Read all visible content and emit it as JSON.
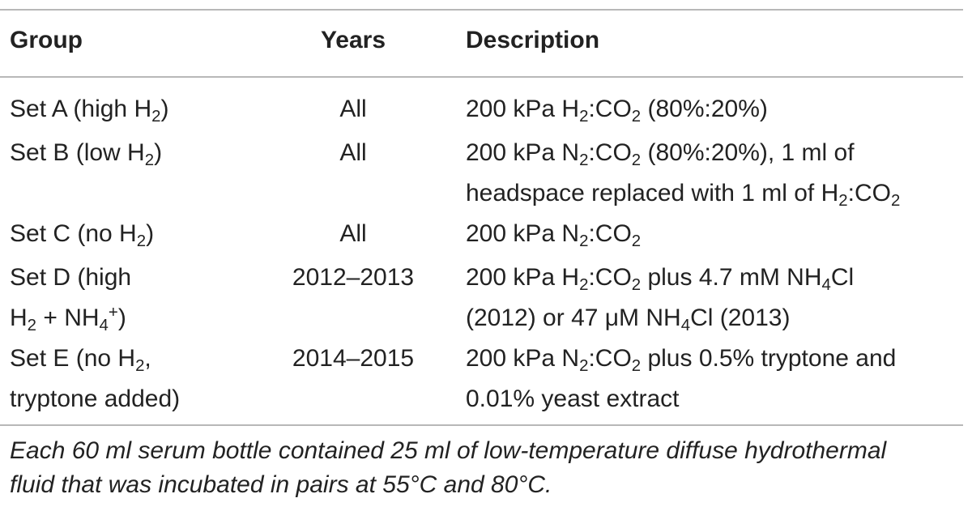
{
  "table": {
    "headers": {
      "group": "Group",
      "years": "Years",
      "description": "Description"
    },
    "rows": [
      {
        "group_lines": [
          "Set A (high H<sub>2</sub>)"
        ],
        "years": "All",
        "desc_lines": [
          "200 kPa H<sub>2</sub>:CO<sub>2</sub> (80%:20%)"
        ]
      },
      {
        "group_lines": [
          "Set B (low H<sub>2</sub>)"
        ],
        "years": "All",
        "desc_lines": [
          "200 kPa N<sub>2</sub>:CO<sub>2</sub> (80%:20%), 1 ml of",
          "headspace replaced with 1 ml of H<sub>2</sub>:CO<sub>2</sub>"
        ]
      },
      {
        "group_lines": [
          "Set C (no H<sub>2</sub>)"
        ],
        "years": "All",
        "desc_lines": [
          "200 kPa N<sub>2</sub>:CO<sub>2</sub>"
        ]
      },
      {
        "group_lines": [
          "Set D (high",
          "H<sub>2</sub> + NH<sub>4</sub><sup>+</sup>)"
        ],
        "years": "2012–2013",
        "desc_lines": [
          "200 kPa H<sub>2</sub>:CO<sub>2</sub> plus 4.7 mM NH<sub>4</sub>Cl",
          "(2012) or 47 μM NH<sub>4</sub>Cl (2013)"
        ]
      },
      {
        "group_lines": [
          "Set E (no H<sub>2</sub>,",
          "tryptone added)"
        ],
        "years": "2014–2015",
        "desc_lines": [
          "200 kPa N<sub>2</sub>:CO<sub>2</sub> plus 0.5% tryptone and",
          "0.01% yeast extract"
        ]
      }
    ],
    "footnote_lines": [
      "Each 60 ml serum bottle contained 25 ml of low-temperature diffuse hydrothermal",
      "fluid that was incubated in pairs at 55°C and 80°C."
    ]
  }
}
